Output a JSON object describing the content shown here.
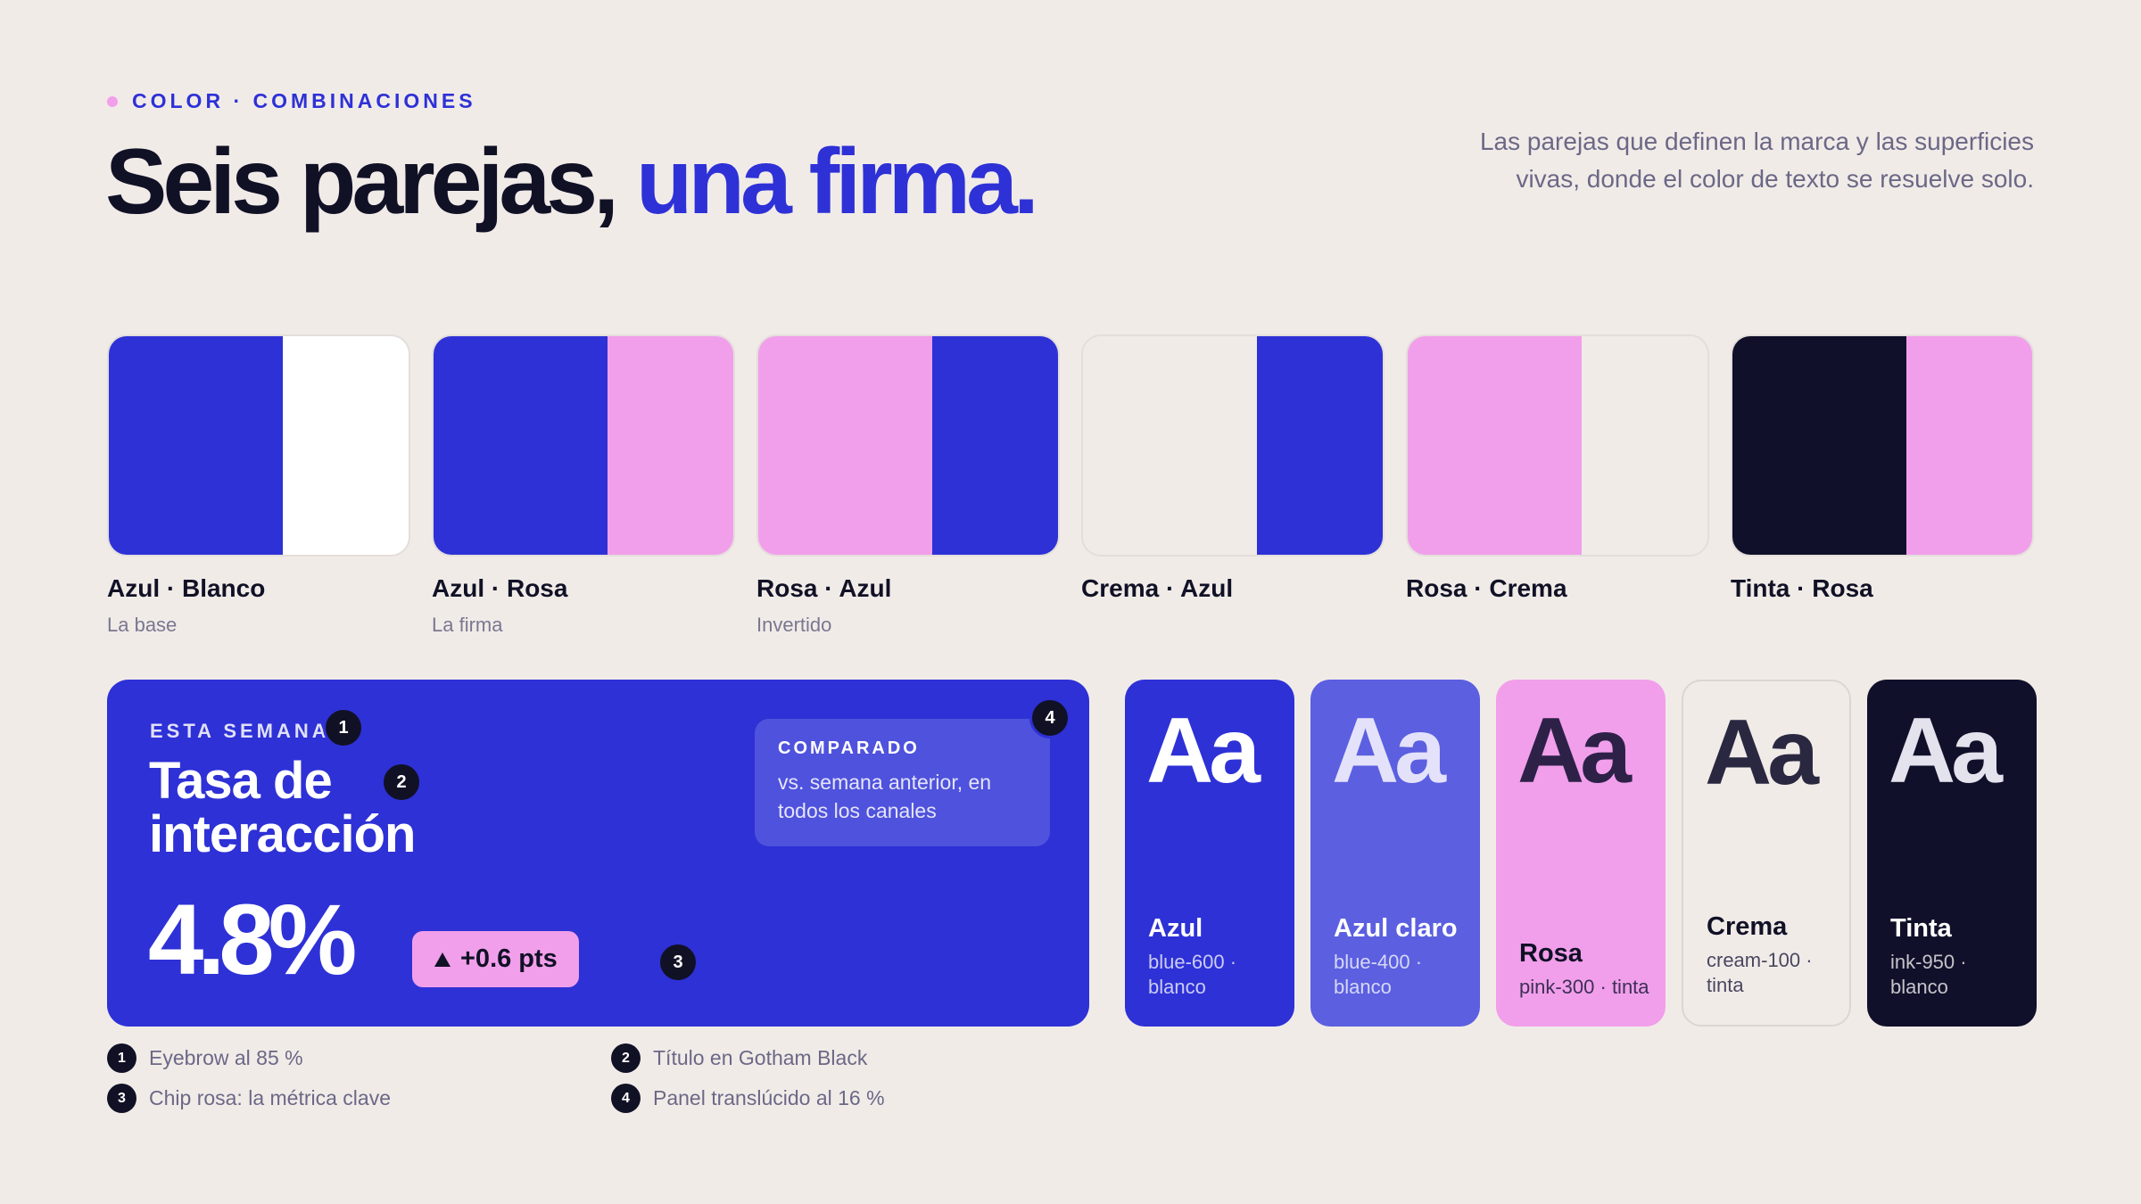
{
  "header": {
    "eyebrow": "COLOR · COMBINACIONES",
    "title_main": "Seis parejas,",
    "title_accent": "una firma.",
    "intro": "Las parejas que definen la marca y las superficies vivas, donde el color de texto se resuelve solo."
  },
  "colors": {
    "blue": "#2E31D6",
    "white": "#FFFFFF",
    "pink": "#F19FEB",
    "cream": "#F1EBE8",
    "ink": "#10102A",
    "blue_light": "#5B5FE0"
  },
  "pairs": [
    {
      "name": "Azul · Blanco",
      "role": "La base",
      "left": "#2E31D6",
      "right": "#FFFFFF"
    },
    {
      "name": "Azul · Rosa",
      "role": "La firma",
      "left": "#2E31D6",
      "right": "#F19FEB"
    },
    {
      "name": "Rosa · Azul",
      "role": "Invertido",
      "left": "#F19FEB",
      "right": "#2E31D6"
    },
    {
      "name": "Crema · Azul",
      "role": "",
      "left": "#F1EBE8",
      "right": "#2E31D6"
    },
    {
      "name": "Rosa · Crema",
      "role": "",
      "left": "#F19FEB",
      "right": "#F1EBE8"
    },
    {
      "name": "Tinta · Rosa",
      "role": "",
      "left": "#10102A",
      "right": "#F19FEB"
    }
  ],
  "metric_card": {
    "eyebrow": "ESTA SEMANA",
    "title_line1": "Tasa de",
    "title_line2": "interacción",
    "value": "4.8%",
    "chip_icon": "triangle-up-icon",
    "chip_text": "+0.6 pts",
    "panel_label": "COMPARADO",
    "panel_text": "vs. semana anterior, en todos los canales",
    "markers": [
      "1",
      "2",
      "3",
      "4"
    ]
  },
  "type_cards": [
    {
      "sample": "Aa",
      "name": "Azul",
      "spec": "blue-600 · blanco",
      "bg": "#2E31D6",
      "fg": "#FFFFFF",
      "sample_color": "#FFFFFF",
      "spec_color": "rgba(255,255,255,0.75)"
    },
    {
      "sample": "Aa",
      "name": "Azul claro",
      "spec": "blue-400 · blanco",
      "bg": "#5B5FE0",
      "fg": "#FFFFFF",
      "sample_color": "#E4E2FA",
      "spec_color": "rgba(255,255,255,0.75)"
    },
    {
      "sample": "Aa",
      "name": "Rosa",
      "spec": "pink-300 · tinta",
      "bg": "#F19FEB",
      "fg": "#111126",
      "sample_color": "#2E2148",
      "spec_color": "#3D2F55"
    },
    {
      "sample": "Aa",
      "name": "Crema",
      "spec": "cream-100 · tinta",
      "bg": "#F1EBE8",
      "fg": "#111126",
      "sample_color": "#2A2840",
      "spec_color": "#4A4760"
    },
    {
      "sample": "Aa",
      "name": "Tinta",
      "spec": "ink-950 · blanco",
      "bg": "#10102A",
      "fg": "#FFFFFF",
      "sample_color": "#E4E2EC",
      "spec_color": "rgba(255,255,255,0.75)"
    }
  ],
  "legend": [
    {
      "num": "1",
      "text": "Eyebrow al 85 %"
    },
    {
      "num": "2",
      "text": "Título en Gotham Black"
    },
    {
      "num": "3",
      "text": "Chip rosa: la métrica clave"
    },
    {
      "num": "4",
      "text": "Panel translúcido al 16 %"
    }
  ]
}
